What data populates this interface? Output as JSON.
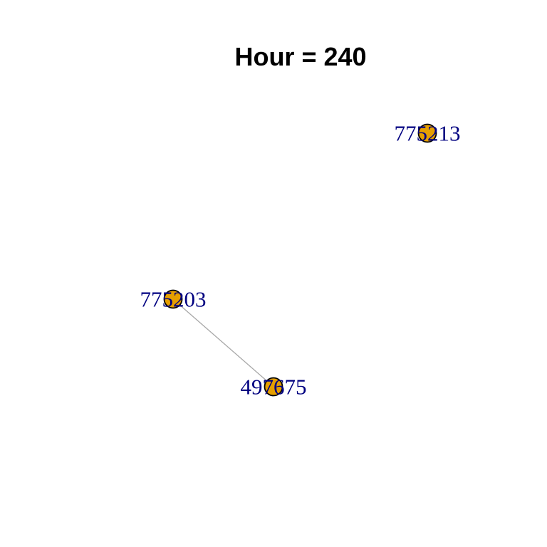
{
  "title": "Hour = 240",
  "colors": {
    "node_fill": "#E69F00",
    "node_stroke": "#000000",
    "label": "#000080",
    "edge": "#A8A8A8"
  },
  "graph": {
    "nodes": [
      {
        "id": "n1",
        "label": "775213"
      },
      {
        "id": "n2",
        "label": "775203"
      },
      {
        "id": "n3",
        "label": "497675"
      }
    ],
    "edges": [
      {
        "source": "n2",
        "target": "n3"
      }
    ]
  }
}
